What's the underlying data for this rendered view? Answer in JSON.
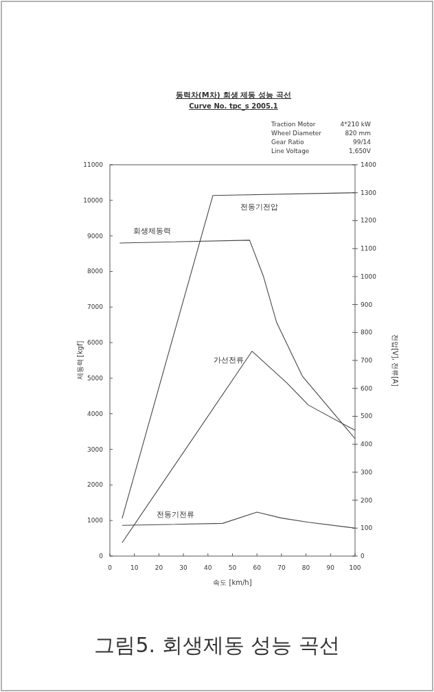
{
  "chart_data": {
    "type": "line",
    "title": "동력차(M차) 회생 제동 성능 곡선",
    "subtitle": "Curve No. tpc_s 2005.1",
    "xlabel": "속도 [km/h]",
    "ylabel": "제동력 [kgf]",
    "y2label": "전압[V], 전류[A]",
    "annotations": [
      "Traction Motor",
      "4*210 kW",
      "Wheel Diameter",
      "820 mm",
      "Gear Ratio",
      "99/14",
      "Line Voltage",
      "1,650V",
      "그림5. 회생제동 성능 곡선"
    ],
    "xlim": [
      0,
      100
    ],
    "xticks": [
      0,
      10,
      20,
      30,
      40,
      50,
      60,
      70,
      80,
      90,
      100
    ],
    "ylim": [
      0,
      11000
    ],
    "yticks": [
      0,
      1000,
      2000,
      3000,
      4000,
      5000,
      6000,
      7000,
      8000,
      9000,
      10000,
      11000
    ],
    "y2lim": [
      0,
      1400
    ],
    "y2ticks": [
      0,
      100,
      200,
      300,
      400,
      500,
      600,
      700,
      800,
      900,
      1000,
      1100,
      1200,
      1300,
      1400
    ],
    "grid": false,
    "legend": false,
    "marker": "none",
    "line_style": "solid",
    "series": [
      {
        "name": "회생제동력",
        "color": "#444444",
        "x": [
          4,
          57,
          62.6,
          68,
          78.5,
          100
        ],
        "values": [
          8800,
          8880,
          7870,
          6570,
          5060,
          3300
        ]
      },
      {
        "name": "전동기전압",
        "color": "#444444",
        "axis": "y2",
        "x": [
          5,
          42,
          100
        ],
        "values": [
          135,
          1290,
          1300
        ]
      },
      {
        "name": "가선전류",
        "color": "#444444",
        "axis": "y2",
        "x": [
          5,
          58,
          72,
          81,
          100
        ],
        "values": [
          48,
          733,
          621,
          540,
          450
        ]
      },
      {
        "name": "전동기전류",
        "color": "#444444",
        "axis": "y2",
        "x": [
          5,
          46,
          60,
          70,
          81,
          100
        ],
        "values": [
          110,
          117,
          157,
          136,
          121,
          100
        ]
      }
    ]
  }
}
